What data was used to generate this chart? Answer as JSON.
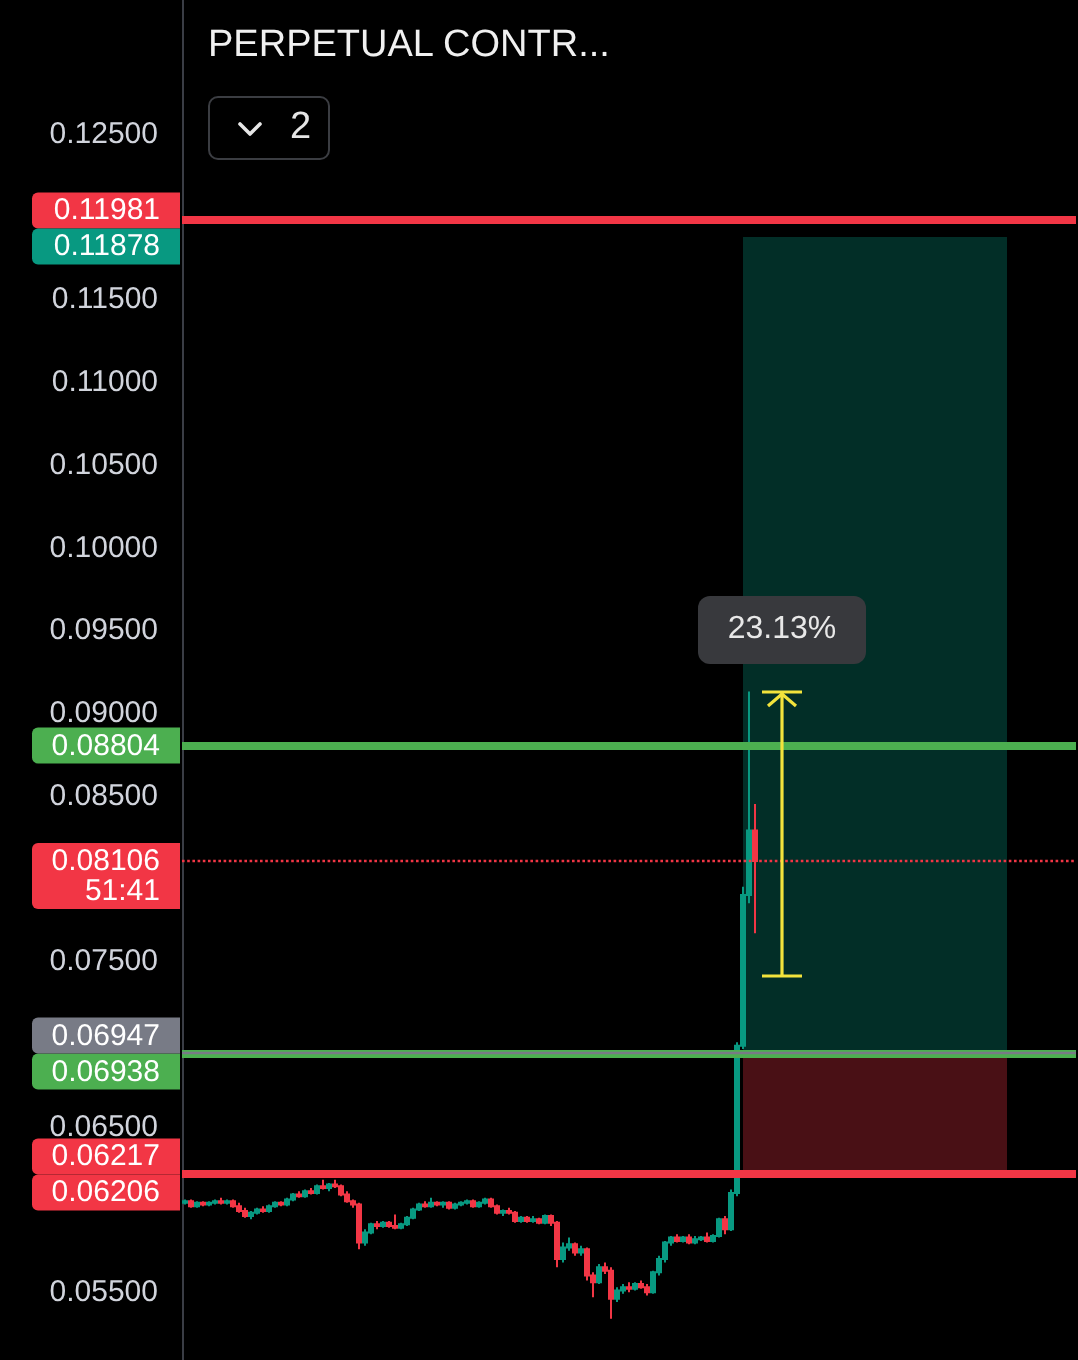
{
  "chart_data": {
    "type": "candlestick",
    "title": "PERPETUAL CONTR...",
    "categories": [
      null,
      null,
      null,
      null,
      null,
      null,
      null,
      null,
      null,
      null,
      null,
      null,
      null,
      null,
      null,
      null,
      null,
      null,
      null,
      null,
      null,
      null,
      null,
      null,
      null,
      null,
      null,
      null,
      null,
      null,
      null,
      null,
      null,
      null,
      null,
      null,
      null,
      null,
      null,
      null,
      null,
      null,
      null,
      null,
      null,
      null,
      null,
      null,
      null,
      null,
      null,
      null,
      null,
      null,
      null,
      null,
      null,
      null,
      null,
      null,
      null,
      null,
      null,
      null,
      null,
      null,
      null,
      null,
      null,
      null,
      null,
      null,
      null,
      null,
      null,
      null,
      null,
      null,
      null,
      null,
      null,
      null,
      null,
      null,
      null,
      null,
      null,
      null,
      null,
      null,
      null,
      null,
      null,
      null,
      null,
      null,
      null,
      null,
      null,
      null,
      null,
      null,
      null,
      null,
      null,
      null,
      null,
      null,
      null,
      null,
      null,
      null,
      null,
      null,
      null,
      null,
      null,
      null,
      null,
      null,
      null,
      null,
      null,
      null,
      null,
      null,
      null,
      null,
      null,
      null,
      null,
      null,
      null,
      null,
      null,
      null,
      null,
      null,
      null,
      null,
      null,
      null,
      null,
      null,
      null,
      null,
      null,
      null,
      null
    ],
    "ohlc": [
      [
        0.0604,
        0.0606,
        0.0603,
        0.0605
      ],
      [
        0.0605,
        0.0606,
        0.0601,
        0.0602
      ],
      [
        0.0602,
        0.0605,
        0.0601,
        0.0604
      ],
      [
        0.0604,
        0.0605,
        0.0602,
        0.0603
      ],
      [
        0.0603,
        0.0605,
        0.0602,
        0.0604
      ],
      [
        0.0604,
        0.0606,
        0.0603,
        0.0605
      ],
      [
        0.0605,
        0.0607,
        0.0603,
        0.0604
      ],
      [
        0.0604,
        0.0606,
        0.0603,
        0.0605
      ],
      [
        0.0605,
        0.0606,
        0.0601,
        0.0602
      ],
      [
        0.0602,
        0.0604,
        0.0598,
        0.0599
      ],
      [
        0.0599,
        0.0601,
        0.0595,
        0.0596
      ],
      [
        0.0596,
        0.0599,
        0.0594,
        0.0598
      ],
      [
        0.0598,
        0.0601,
        0.0597,
        0.06
      ],
      [
        0.06,
        0.0602,
        0.0598,
        0.0599
      ],
      [
        0.0599,
        0.0603,
        0.0598,
        0.0602
      ],
      [
        0.0602,
        0.0605,
        0.0601,
        0.0604
      ],
      [
        0.0604,
        0.0605,
        0.0602,
        0.0603
      ],
      [
        0.0603,
        0.0607,
        0.0602,
        0.0606
      ],
      [
        0.0606,
        0.061,
        0.0605,
        0.0609
      ],
      [
        0.0609,
        0.0611,
        0.0607,
        0.0608
      ],
      [
        0.0608,
        0.0612,
        0.0607,
        0.0611
      ],
      [
        0.0611,
        0.0613,
        0.0609,
        0.061
      ],
      [
        0.061,
        0.0615,
        0.0609,
        0.0614
      ],
      [
        0.0614,
        0.0618,
        0.0612,
        0.0613
      ],
      [
        0.0613,
        0.0616,
        0.0611,
        0.0615
      ],
      [
        0.0615,
        0.0618,
        0.0613,
        0.0614
      ],
      [
        0.0614,
        0.0615,
        0.0608,
        0.0609
      ],
      [
        0.0609,
        0.0611,
        0.0604,
        0.0605
      ],
      [
        0.0605,
        0.0606,
        0.0601,
        0.0603
      ],
      [
        0.0603,
        0.0604,
        0.0576,
        0.058
      ],
      [
        0.058,
        0.0588,
        0.0578,
        0.0586
      ],
      [
        0.0586,
        0.0592,
        0.0585,
        0.0591
      ],
      [
        0.0591,
        0.0593,
        0.0588,
        0.059
      ],
      [
        0.059,
        0.0593,
        0.0589,
        0.0592
      ],
      [
        0.0592,
        0.0593,
        0.0589,
        0.059
      ],
      [
        0.059,
        0.0597,
        0.0588,
        0.0589
      ],
      [
        0.0589,
        0.0592,
        0.0588,
        0.0591
      ],
      [
        0.0591,
        0.0596,
        0.059,
        0.0595
      ],
      [
        0.0595,
        0.0601,
        0.0594,
        0.06
      ],
      [
        0.06,
        0.0604,
        0.0599,
        0.0603
      ],
      [
        0.0603,
        0.0605,
        0.0601,
        0.0602
      ],
      [
        0.0602,
        0.0607,
        0.0601,
        0.0604
      ],
      [
        0.0604,
        0.0605,
        0.0602,
        0.0603
      ],
      [
        0.0603,
        0.0605,
        0.0601,
        0.0604
      ],
      [
        0.0604,
        0.0605,
        0.06,
        0.0601
      ],
      [
        0.0601,
        0.0604,
        0.06,
        0.0603
      ],
      [
        0.0603,
        0.0605,
        0.0602,
        0.0604
      ],
      [
        0.0604,
        0.0606,
        0.0603,
        0.0605
      ],
      [
        0.0605,
        0.0606,
        0.0601,
        0.0602
      ],
      [
        0.0602,
        0.0605,
        0.0601,
        0.0604
      ],
      [
        0.0604,
        0.0607,
        0.0603,
        0.0606
      ],
      [
        0.0606,
        0.0607,
        0.0601,
        0.0602
      ],
      [
        0.0602,
        0.0603,
        0.0597,
        0.0598
      ],
      [
        0.0598,
        0.06,
        0.0596,
        0.0599
      ],
      [
        0.0599,
        0.0601,
        0.0597,
        0.0598
      ],
      [
        0.0598,
        0.0599,
        0.0592,
        0.0593
      ],
      [
        0.0593,
        0.0596,
        0.0592,
        0.0595
      ],
      [
        0.0595,
        0.0596,
        0.0592,
        0.0593
      ],
      [
        0.0593,
        0.0596,
        0.0592,
        0.0594
      ],
      [
        0.0594,
        0.0595,
        0.0591,
        0.0592
      ],
      [
        0.0592,
        0.0597,
        0.0591,
        0.0596
      ],
      [
        0.0596,
        0.0597,
        0.059,
        0.0592
      ],
      [
        0.0592,
        0.0593,
        0.0565,
        0.057
      ],
      [
        0.057,
        0.058,
        0.0568,
        0.0577
      ],
      [
        0.0577,
        0.0583,
        0.0575,
        0.0579
      ],
      [
        0.0579,
        0.058,
        0.0572,
        0.0574
      ],
      [
        0.0574,
        0.0578,
        0.0572,
        0.0576
      ],
      [
        0.0576,
        0.0577,
        0.0557,
        0.056
      ],
      [
        0.056,
        0.0562,
        0.0547,
        0.0556
      ],
      [
        0.0556,
        0.0567,
        0.0555,
        0.0565
      ],
      [
        0.0565,
        0.0568,
        0.0561,
        0.0563
      ],
      [
        0.0563,
        0.0565,
        0.0534,
        0.0546
      ],
      [
        0.0546,
        0.0553,
        0.0544,
        0.0551
      ],
      [
        0.0551,
        0.0555,
        0.0549,
        0.0553
      ],
      [
        0.0553,
        0.0556,
        0.055,
        0.0552
      ],
      [
        0.0552,
        0.0556,
        0.0551,
        0.0555
      ],
      [
        0.0555,
        0.0557,
        0.0552,
        0.0553
      ],
      [
        0.0553,
        0.0555,
        0.0548,
        0.055
      ],
      [
        0.055,
        0.0563,
        0.0549,
        0.0562
      ],
      [
        0.0562,
        0.0572,
        0.056,
        0.057
      ],
      [
        0.057,
        0.0581,
        0.0568,
        0.058
      ],
      [
        0.058,
        0.0584,
        0.0578,
        0.0583
      ],
      [
        0.0583,
        0.0585,
        0.058,
        0.0581
      ],
      [
        0.0581,
        0.0584,
        0.058,
        0.0583
      ],
      [
        0.0583,
        0.0585,
        0.0579,
        0.058
      ],
      [
        0.058,
        0.0584,
        0.0579,
        0.0582
      ],
      [
        0.0582,
        0.0584,
        0.0581,
        0.0583
      ],
      [
        0.0583,
        0.0586,
        0.058,
        0.0581
      ],
      [
        0.0581,
        0.0585,
        0.058,
        0.0584
      ],
      [
        0.0584,
        0.0595,
        0.0583,
        0.0594
      ],
      [
        0.0594,
        0.0596,
        0.0585,
        0.0588
      ],
      [
        0.0588,
        0.0612,
        0.0587,
        0.061
      ],
      [
        0.061,
        0.0701,
        0.0608,
        0.0699
      ],
      [
        0.0699,
        0.0795,
        0.0697,
        0.079
      ],
      [
        0.079,
        0.0913,
        0.0785,
        0.0829
      ],
      [
        0.0829,
        0.0845,
        0.0767,
        0.08106
      ],
      null,
      null,
      null,
      null,
      null,
      null,
      null,
      null,
      null,
      null,
      null,
      null,
      null,
      null,
      null,
      null,
      null,
      null,
      null,
      null,
      null,
      null,
      null,
      null,
      null,
      null,
      null,
      null,
      null,
      null,
      null,
      null,
      null,
      null,
      null,
      null,
      null,
      null,
      null,
      null,
      null,
      null,
      null,
      null,
      null,
      null,
      null,
      null,
      null,
      null,
      null,
      null,
      null
    ],
    "colors": [
      "#089981",
      "#f23645",
      "#089981",
      "#f23645",
      "#089981",
      "#089981",
      "#f23645",
      "#089981",
      "#f23645",
      "#f23645",
      "#f23645",
      "#089981",
      "#089981",
      "#f23645",
      "#089981",
      "#089981",
      "#f23645",
      "#089981",
      "#089981",
      "#f23645",
      "#089981",
      "#f23645",
      "#089981",
      "#f23645",
      "#089981",
      "#f23645",
      "#f23645",
      "#f23645",
      "#f23645",
      "#f23645",
      "#089981",
      "#089981",
      "#f23645",
      "#089981",
      "#f23645",
      "#f23645",
      "#089981",
      "#089981",
      "#089981",
      "#089981",
      "#f23645",
      "#089981",
      "#f23645",
      "#089981",
      "#f23645",
      "#089981",
      "#089981",
      "#089981",
      "#f23645",
      "#089981",
      "#089981",
      "#f23645",
      "#f23645",
      "#089981",
      "#f23645",
      "#f23645",
      "#089981",
      "#f23645",
      "#089981",
      "#f23645",
      "#089981",
      "#f23645",
      "#f23645",
      "#089981",
      "#089981",
      "#f23645",
      "#089981",
      "#f23645",
      "#f23645",
      "#089981",
      "#f23645",
      "#f23645",
      "#089981",
      "#089981",
      "#f23645",
      "#089981",
      "#f23645",
      "#f23645",
      "#089981",
      "#089981",
      "#089981",
      "#089981",
      "#f23645",
      "#089981",
      "#f23645",
      "#089981",
      "#089981",
      "#f23645",
      "#089981",
      "#089981",
      "#f23645",
      "#089981",
      "#089981",
      "#089981",
      "#089981",
      "#f23645",
      null,
      null,
      null,
      null,
      null,
      null,
      null,
      null,
      null,
      null,
      null,
      null,
      null,
      null,
      null,
      null,
      null,
      null,
      null,
      null,
      null,
      null,
      null,
      null,
      null,
      null,
      null,
      null,
      null,
      null,
      null,
      null,
      null,
      null,
      null,
      null,
      null,
      null,
      null,
      null,
      null,
      null,
      null,
      null,
      null,
      null,
      null,
      null,
      null,
      null,
      null,
      null,
      null
    ],
    "ylim": [
      0.0509,
      0.1331
    ],
    "yticks": [
      {
        "value": 0.125,
        "label": "0.12500"
      },
      {
        "value": 0.115,
        "label": "0.11500"
      },
      {
        "value": 0.11,
        "label": "0.11000"
      },
      {
        "value": 0.105,
        "label": "0.10500"
      },
      {
        "value": 0.1,
        "label": "0.10000"
      },
      {
        "value": 0.095,
        "label": "0.09500"
      },
      {
        "value": 0.09,
        "label": "0.09000"
      },
      {
        "value": 0.085,
        "label": "0.08500"
      },
      {
        "value": 0.075,
        "label": "0.07500"
      },
      {
        "value": 0.065,
        "label": "0.06500"
      },
      {
        "value": 0.055,
        "label": "0.05500"
      }
    ],
    "tick_labels": "y",
    "ref_lines": [
      {
        "axis": "y",
        "value": 0.11981,
        "label": "0.11981",
        "color": "#f23645"
      },
      {
        "axis": "y",
        "value": 0.08804,
        "label": "0.08804",
        "color": "#4caf50"
      },
      {
        "axis": "y",
        "value": 0.08106,
        "label": "0.08106\n51:41",
        "color": "#f23645",
        "line_style": "dotted"
      },
      {
        "axis": "y",
        "value": 0.06938,
        "label": "0.06938",
        "color": "#4caf50"
      },
      {
        "axis": "y",
        "value": 0.06217,
        "label": "0.06217",
        "color": "#f23645"
      },
      {
        "axis": "y",
        "value": 0.06947,
        "label": "0.06947",
        "color": "#787b86"
      }
    ],
    "bands": [
      {
        "axis": "y",
        "from": 0.06947,
        "to": 0.11878,
        "color": "#089981"
      },
      {
        "axis": "y",
        "from": 0.06947,
        "to": 0.06206,
        "color": "#f23645"
      }
    ],
    "annotations": [
      "2",
      "23.13%",
      "0.11878",
      "0.06206"
    ]
  }
}
